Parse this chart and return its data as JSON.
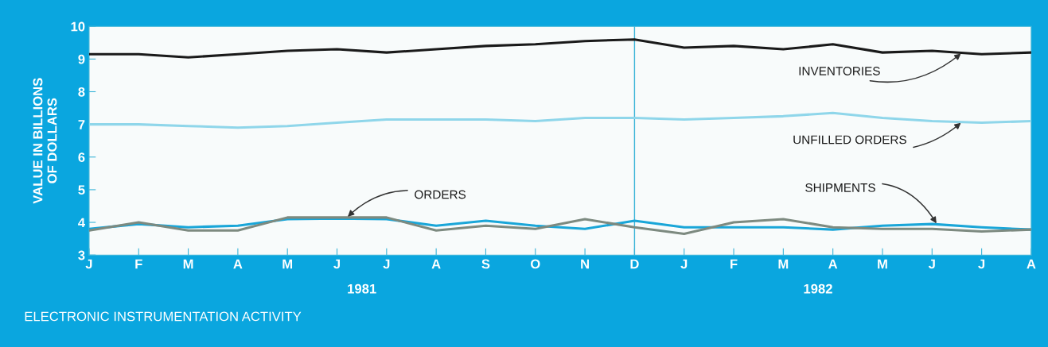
{
  "chart_data": {
    "type": "line",
    "title": "ELECTRONIC INSTRUMENTATION ACTIVITY",
    "ylabel": "VALUE IN BILLIONS\nOF DOLLARS",
    "categories": [
      "J",
      "F",
      "M",
      "A",
      "M",
      "J",
      "J",
      "A",
      "S",
      "O",
      "N",
      "D",
      "J",
      "F",
      "M",
      "A",
      "M",
      "J",
      "J",
      "A"
    ],
    "series": [
      {
        "name": "INVENTORIES",
        "color": "#1a1a1a",
        "values": [
          9.15,
          9.15,
          9.05,
          9.15,
          9.25,
          9.3,
          9.2,
          9.3,
          9.4,
          9.45,
          9.55,
          9.6,
          9.35,
          9.4,
          9.3,
          9.45,
          9.2,
          9.25,
          9.15,
          9.2
        ]
      },
      {
        "name": "UNFILLED ORDERS",
        "color": "#8fd6ea",
        "values": [
          7.0,
          7.0,
          6.95,
          6.9,
          6.95,
          7.05,
          7.15,
          7.15,
          7.15,
          7.1,
          7.2,
          7.2,
          7.15,
          7.2,
          7.25,
          7.35,
          7.2,
          7.1,
          7.05,
          7.1
        ]
      },
      {
        "name": "ORDERS",
        "color": "#7d8a80",
        "values": [
          3.75,
          4.0,
          3.75,
          3.75,
          4.15,
          4.15,
          4.15,
          3.75,
          3.9,
          3.8,
          4.1,
          3.85,
          3.65,
          4.0,
          4.1,
          3.85,
          3.8,
          3.8,
          3.72,
          3.78
        ]
      },
      {
        "name": "SHIPMENTS",
        "color": "#1aa6d8",
        "values": [
          3.8,
          3.95,
          3.85,
          3.9,
          4.1,
          4.12,
          4.1,
          3.9,
          4.05,
          3.9,
          3.8,
          4.05,
          3.85,
          3.85,
          3.85,
          3.78,
          3.9,
          3.95,
          3.85,
          3.78
        ]
      }
    ],
    "ylim": [
      3,
      10
    ],
    "yticks": [
      3,
      4,
      5,
      6,
      7,
      8,
      9,
      10
    ],
    "annotations": [
      "1981",
      "1982"
    ],
    "ref_lines": [
      {
        "axis": "x",
        "value": "D",
        "color": "#3bb4d8"
      }
    ],
    "grid": false,
    "legend": false,
    "marker": "none",
    "line_style": "solid"
  }
}
